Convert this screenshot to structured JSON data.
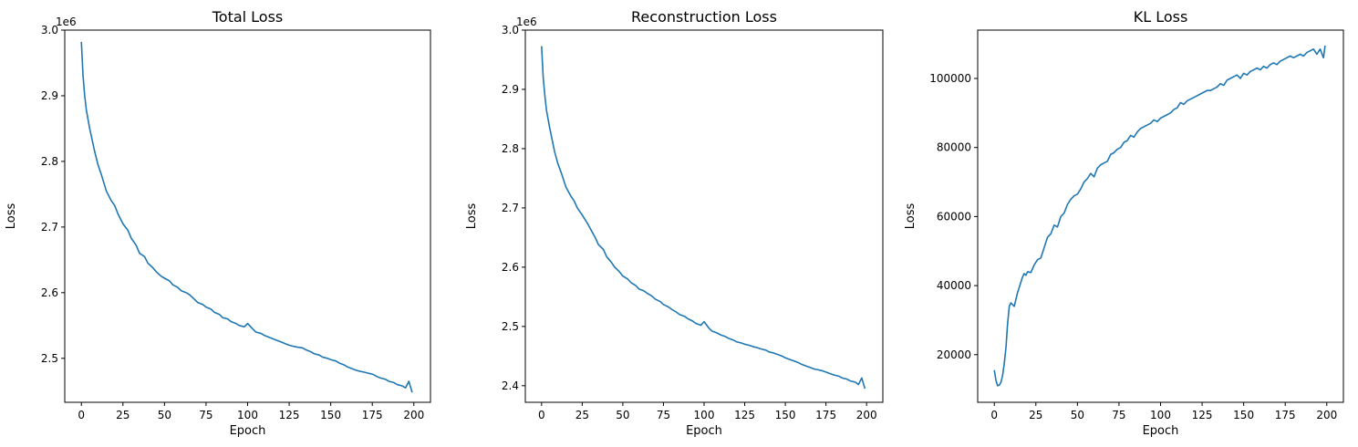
{
  "chart_data": [
    {
      "type": "line",
      "title": "Total Loss",
      "xlabel": "Epoch",
      "ylabel": "Loss",
      "offset_label": "1e6",
      "xlim": [
        -10,
        210
      ],
      "ylim": [
        2.433,
        3.0
      ],
      "xticks": [
        0,
        25,
        50,
        75,
        100,
        125,
        150,
        175,
        200
      ],
      "yticks": [
        2.5,
        2.6,
        2.7,
        2.8,
        2.9,
        3.0
      ],
      "ytick_labels": [
        "2.5",
        "2.6",
        "2.7",
        "2.8",
        "2.9",
        "3.0"
      ],
      "color": "#1f77b4",
      "grid": false,
      "series": [
        {
          "x": [
            0,
            1,
            2,
            3,
            5,
            8,
            10,
            12,
            15,
            18,
            20,
            22,
            25,
            28,
            30,
            33,
            35,
            38,
            40,
            43,
            45,
            48,
            50,
            53,
            55,
            58,
            60,
            63,
            65,
            68,
            70,
            73,
            75,
            78,
            80,
            83,
            85,
            88,
            90,
            93,
            95,
            98,
            100,
            103,
            105,
            108,
            110,
            113,
            115,
            118,
            120,
            123,
            125,
            128,
            130,
            133,
            135,
            138,
            140,
            143,
            145,
            148,
            150,
            153,
            155,
            158,
            160,
            163,
            165,
            168,
            170,
            173,
            175,
            178,
            180,
            183,
            185,
            188,
            190,
            193,
            195,
            197,
            199
          ],
          "y": [
            2.982,
            2.93,
            2.9,
            2.878,
            2.85,
            2.815,
            2.795,
            2.78,
            2.755,
            2.74,
            2.733,
            2.72,
            2.705,
            2.695,
            2.683,
            2.672,
            2.66,
            2.655,
            2.645,
            2.638,
            2.632,
            2.625,
            2.622,
            2.618,
            2.612,
            2.608,
            2.603,
            2.6,
            2.597,
            2.59,
            2.585,
            2.582,
            2.578,
            2.575,
            2.57,
            2.567,
            2.562,
            2.56,
            2.556,
            2.553,
            2.55,
            2.548,
            2.553,
            2.545,
            2.54,
            2.538,
            2.535,
            2.532,
            2.53,
            2.527,
            2.525,
            2.522,
            2.52,
            2.518,
            2.517,
            2.516,
            2.513,
            2.51,
            2.507,
            2.505,
            2.502,
            2.5,
            2.498,
            2.496,
            2.493,
            2.49,
            2.487,
            2.484,
            2.482,
            2.48,
            2.479,
            2.477,
            2.476,
            2.472,
            2.47,
            2.468,
            2.465,
            2.463,
            2.46,
            2.458,
            2.455,
            2.465,
            2.448
          ]
        }
      ]
    },
    {
      "type": "line",
      "title": "Reconstruction Loss",
      "xlabel": "Epoch",
      "ylabel": "Loss",
      "offset_label": "1e6",
      "xlim": [
        -10,
        210
      ],
      "ylim": [
        2.372,
        3.0
      ],
      "xticks": [
        0,
        25,
        50,
        75,
        100,
        125,
        150,
        175,
        200
      ],
      "yticks": [
        2.4,
        2.5,
        2.6,
        2.7,
        2.8,
        2.9,
        3.0
      ],
      "ytick_labels": [
        "2.4",
        "2.5",
        "2.6",
        "2.7",
        "2.8",
        "2.9",
        "3.0"
      ],
      "color": "#1f77b4",
      "grid": false,
      "series": [
        {
          "x": [
            0,
            1,
            2,
            3,
            5,
            8,
            10,
            12,
            15,
            18,
            20,
            22,
            25,
            28,
            30,
            33,
            35,
            38,
            40,
            43,
            45,
            48,
            50,
            53,
            55,
            58,
            60,
            63,
            65,
            68,
            70,
            73,
            75,
            78,
            80,
            83,
            85,
            88,
            90,
            93,
            95,
            98,
            100,
            103,
            105,
            108,
            110,
            113,
            115,
            118,
            120,
            123,
            125,
            128,
            130,
            133,
            135,
            138,
            140,
            143,
            145,
            148,
            150,
            153,
            155,
            158,
            160,
            163,
            165,
            168,
            170,
            173,
            175,
            178,
            180,
            183,
            185,
            188,
            190,
            193,
            195,
            197,
            199
          ],
          "y": [
            2.973,
            2.92,
            2.89,
            2.865,
            2.835,
            2.795,
            2.775,
            2.76,
            2.735,
            2.72,
            2.712,
            2.7,
            2.688,
            2.675,
            2.665,
            2.65,
            2.638,
            2.63,
            2.618,
            2.608,
            2.6,
            2.592,
            2.585,
            2.58,
            2.574,
            2.569,
            2.563,
            2.56,
            2.556,
            2.551,
            2.546,
            2.542,
            2.537,
            2.533,
            2.529,
            2.524,
            2.52,
            2.517,
            2.513,
            2.509,
            2.505,
            2.502,
            2.508,
            2.497,
            2.492,
            2.489,
            2.486,
            2.483,
            2.48,
            2.477,
            2.474,
            2.472,
            2.47,
            2.468,
            2.466,
            2.464,
            2.462,
            2.46,
            2.457,
            2.455,
            2.453,
            2.45,
            2.447,
            2.444,
            2.442,
            2.439,
            2.436,
            2.433,
            2.431,
            2.428,
            2.427,
            2.425,
            2.423,
            2.42,
            2.418,
            2.416,
            2.413,
            2.411,
            2.408,
            2.406,
            2.402,
            2.413,
            2.395
          ]
        }
      ]
    },
    {
      "type": "line",
      "title": "KL Loss",
      "xlabel": "Epoch",
      "ylabel": "Loss",
      "offset_label": "",
      "xlim": [
        -10,
        210
      ],
      "ylim": [
        6200,
        114000
      ],
      "xticks": [
        0,
        25,
        50,
        75,
        100,
        125,
        150,
        175,
        200
      ],
      "yticks": [
        20000,
        40000,
        60000,
        80000,
        100000
      ],
      "ytick_labels": [
        "20000",
        "40000",
        "60000",
        "80000",
        "100000"
      ],
      "color": "#1f77b4",
      "grid": false,
      "series": [
        {
          "x": [
            0,
            1,
            2,
            3,
            4,
            5,
            6,
            7,
            8,
            9,
            10,
            11,
            12,
            13,
            14,
            15,
            16,
            17,
            18,
            19,
            20,
            22,
            24,
            26,
            28,
            30,
            32,
            34,
            36,
            38,
            40,
            42,
            44,
            46,
            48,
            50,
            52,
            54,
            56,
            58,
            60,
            62,
            64,
            66,
            68,
            70,
            72,
            74,
            76,
            78,
            80,
            82,
            84,
            86,
            88,
            90,
            92,
            94,
            96,
            98,
            100,
            102,
            104,
            106,
            108,
            110,
            112,
            114,
            116,
            118,
            120,
            122,
            124,
            126,
            128,
            130,
            132,
            134,
            136,
            138,
            140,
            142,
            144,
            146,
            148,
            150,
            152,
            154,
            156,
            158,
            160,
            162,
            164,
            166,
            168,
            170,
            172,
            174,
            176,
            178,
            180,
            182,
            184,
            186,
            188,
            190,
            192,
            194,
            196,
            198,
            199
          ],
          "y": [
            15500,
            12500,
            11000,
            11200,
            12000,
            14000,
            17500,
            22000,
            29000,
            34000,
            35000,
            34500,
            34000,
            36000,
            38000,
            39500,
            41000,
            42500,
            43500,
            43000,
            44000,
            43800,
            46000,
            47500,
            48000,
            51000,
            54000,
            55000,
            57500,
            57000,
            60000,
            61000,
            63500,
            65000,
            66000,
            66500,
            68000,
            70000,
            71000,
            72500,
            71500,
            74000,
            75000,
            75500,
            76000,
            78000,
            78500,
            79500,
            80000,
            81500,
            82000,
            83500,
            83000,
            84500,
            85500,
            86000,
            86500,
            87000,
            88000,
            87500,
            88500,
            89000,
            89500,
            90000,
            91000,
            91500,
            93000,
            92500,
            93500,
            94000,
            94500,
            95000,
            95500,
            96000,
            96500,
            96500,
            97000,
            97500,
            98500,
            98000,
            99500,
            100000,
            100500,
            101000,
            100000,
            101500,
            101000,
            102000,
            102500,
            103000,
            102500,
            103500,
            103000,
            104000,
            104500,
            104000,
            105000,
            105500,
            106000,
            106500,
            106000,
            106500,
            107000,
            106500,
            107500,
            108000,
            108500,
            107000,
            108500,
            106000,
            109500
          ]
        }
      ]
    }
  ]
}
